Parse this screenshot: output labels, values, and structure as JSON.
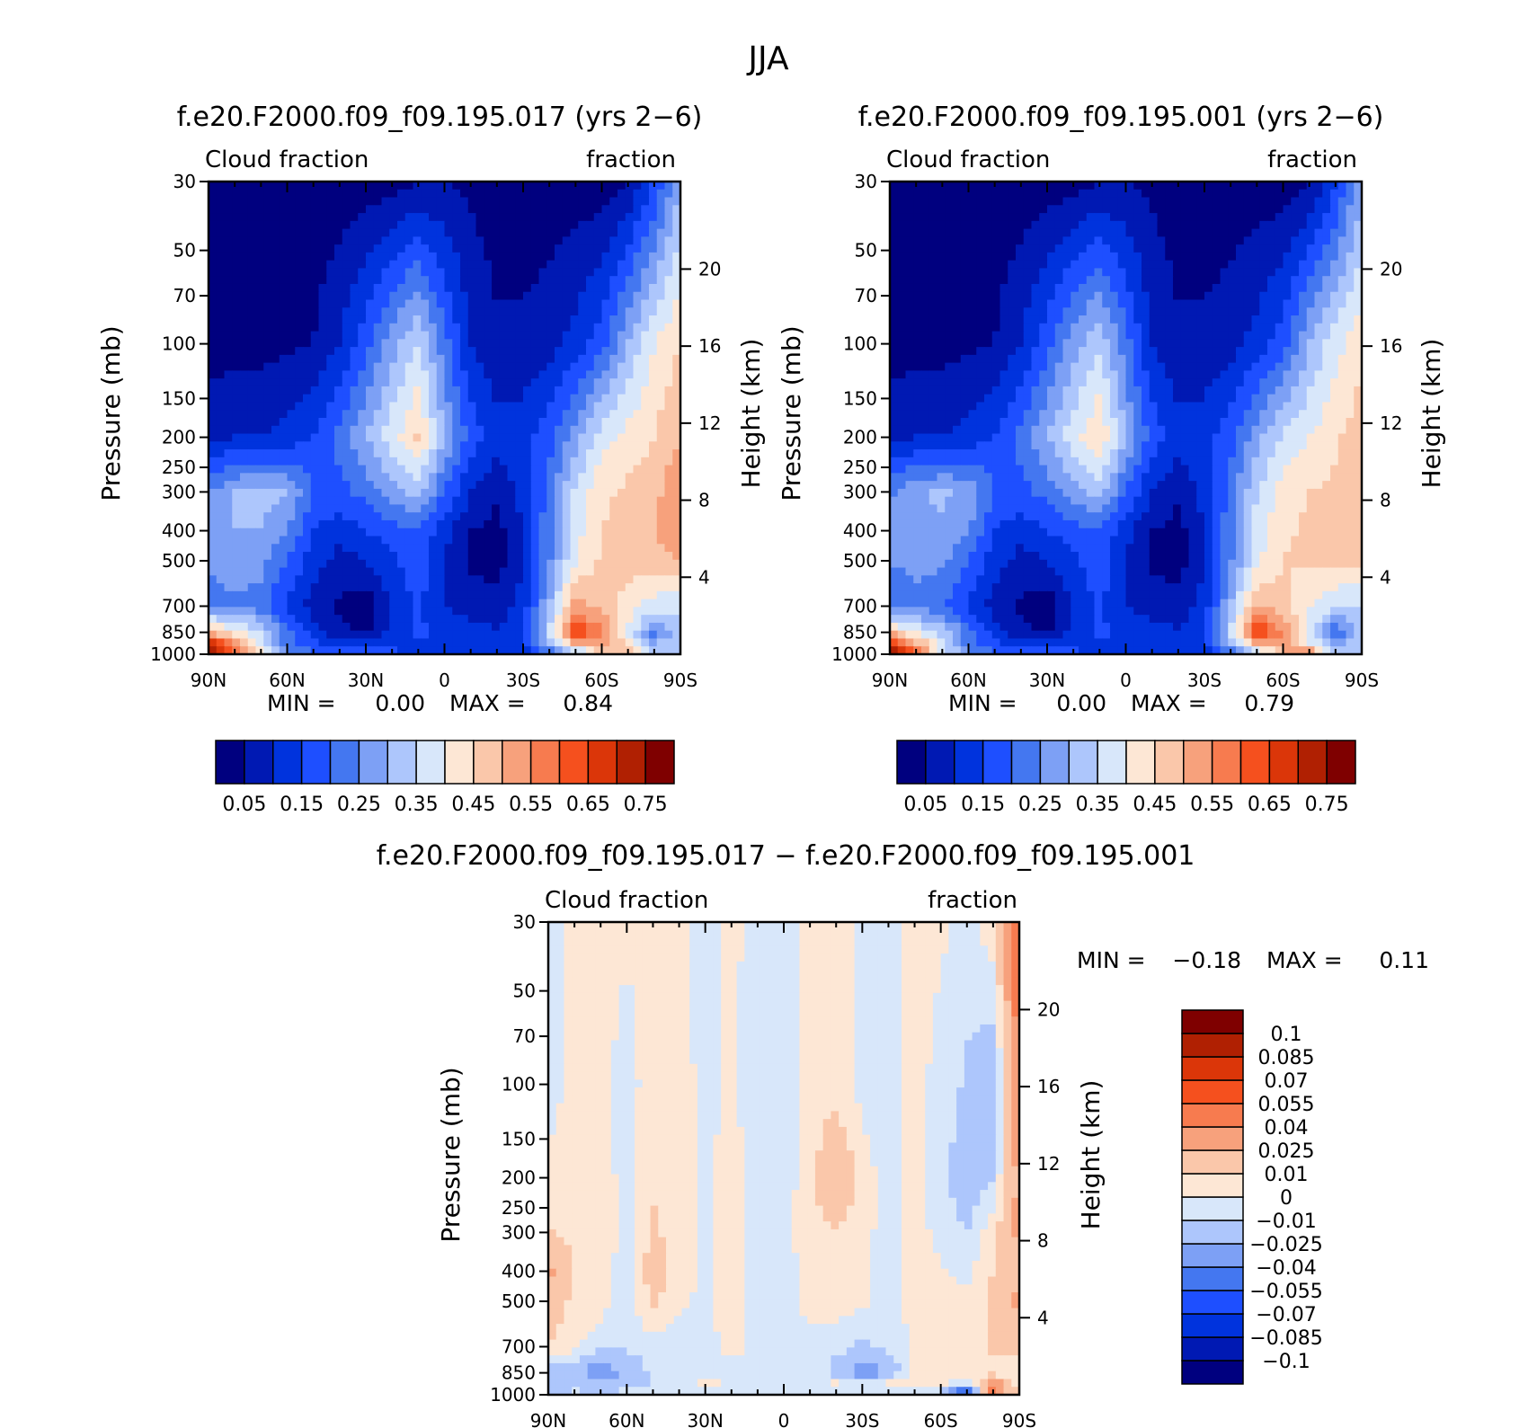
{
  "figure_title": "JJA",
  "chart_data": [
    {
      "type": "heatmap",
      "title": "f.e20.F2000.f09_f09.195.017 (yrs 2−6)",
      "left_label": "Cloud fraction",
      "right_label": "fraction",
      "xlabel": "",
      "ylabel": "Pressure (mb)",
      "y2label": "Height (km)",
      "x_ticks": [
        "90N",
        "60N",
        "30N",
        "0",
        "30S",
        "60S",
        "90S"
      ],
      "y_ticks": [
        "30",
        "50",
        "70",
        "100",
        "150",
        "200",
        "250",
        "300",
        "400",
        "500",
        "700",
        "850",
        "1000"
      ],
      "y2_ticks": [
        "20",
        "16",
        "12",
        "8",
        "4"
      ],
      "xlim": [
        "90N",
        "90S"
      ],
      "ylim": [
        1000,
        30
      ],
      "y_scale": "log",
      "stats": {
        "min_label": "MIN =",
        "min": "0.00",
        "max_label": "MAX =",
        "max": "0.84"
      },
      "colorbar": {
        "orientation": "horizontal",
        "colors": [
          "#00007f",
          "#0019b3",
          "#0033dd",
          "#1e4fff",
          "#4477f0",
          "#7da0f5",
          "#adc6fc",
          "#d8e7fa",
          "#fde7d5",
          "#fac7aa",
          "#f7a17c",
          "#f77b4f",
          "#f5501e",
          "#db3609",
          "#b02002",
          "#7f0000"
        ],
        "labels": [
          "0.05",
          "0.15",
          "0.25",
          "0.35",
          "0.45",
          "0.55",
          "0.65",
          "0.75"
        ]
      },
      "field": {
        "lat": [
          90,
          80,
          70,
          60,
          50,
          40,
          30,
          20,
          10,
          0,
          -10,
          -20,
          -30,
          -40,
          -50,
          -60,
          -70,
          -80,
          -90
        ],
        "pressure": [
          30,
          100,
          200,
          300,
          400,
          500,
          700,
          850,
          925,
          1000
        ],
        "values": [
          [
            0.02,
            0.02,
            0.02,
            0.02,
            0.02,
            0.02,
            0.02,
            0.03,
            0.05,
            0.05,
            0.04,
            0.02,
            0.02,
            0.02,
            0.02,
            0.02,
            0.05,
            0.15,
            0.3
          ],
          [
            0.03,
            0.03,
            0.03,
            0.04,
            0.05,
            0.1,
            0.18,
            0.28,
            0.35,
            0.22,
            0.1,
            0.06,
            0.06,
            0.08,
            0.12,
            0.18,
            0.3,
            0.4,
            0.45
          ],
          [
            0.08,
            0.1,
            0.1,
            0.12,
            0.15,
            0.22,
            0.3,
            0.38,
            0.46,
            0.3,
            0.18,
            0.12,
            0.13,
            0.18,
            0.28,
            0.38,
            0.42,
            0.45,
            0.5
          ],
          [
            0.25,
            0.3,
            0.32,
            0.3,
            0.2,
            0.18,
            0.22,
            0.28,
            0.32,
            0.2,
            0.1,
            0.06,
            0.12,
            0.22,
            0.36,
            0.44,
            0.46,
            0.48,
            0.55
          ],
          [
            0.28,
            0.3,
            0.3,
            0.25,
            0.15,
            0.12,
            0.15,
            0.18,
            0.2,
            0.12,
            0.05,
            0.03,
            0.1,
            0.24,
            0.38,
            0.45,
            0.47,
            0.5,
            0.55
          ],
          [
            0.26,
            0.28,
            0.27,
            0.2,
            0.12,
            0.08,
            0.1,
            0.14,
            0.18,
            0.1,
            0.04,
            0.02,
            0.1,
            0.24,
            0.4,
            0.46,
            0.48,
            0.48,
            0.5
          ],
          [
            0.22,
            0.24,
            0.22,
            0.14,
            0.08,
            0.04,
            0.02,
            0.1,
            0.16,
            0.1,
            0.08,
            0.08,
            0.12,
            0.3,
            0.52,
            0.48,
            0.42,
            0.38,
            0.35
          ],
          [
            0.5,
            0.42,
            0.36,
            0.22,
            0.12,
            0.06,
            0.04,
            0.12,
            0.16,
            0.14,
            0.12,
            0.1,
            0.14,
            0.36,
            0.66,
            0.56,
            0.4,
            0.22,
            0.35
          ],
          [
            0.72,
            0.55,
            0.38,
            0.22,
            0.16,
            0.12,
            0.12,
            0.14,
            0.14,
            0.14,
            0.12,
            0.12,
            0.14,
            0.3,
            0.5,
            0.55,
            0.42,
            0.3,
            0.35
          ],
          [
            0.8,
            0.64,
            0.4,
            0.28,
            0.22,
            0.18,
            0.18,
            0.16,
            0.14,
            0.12,
            0.12,
            0.12,
            0.12,
            0.18,
            0.28,
            0.45,
            0.52,
            0.35,
            0.35
          ]
        ]
      }
    },
    {
      "type": "heatmap",
      "title": "f.e20.F2000.f09_f09.195.001 (yrs 2−6)",
      "left_label": "Cloud fraction",
      "right_label": "fraction",
      "xlabel": "",
      "ylabel": "Pressure (mb)",
      "y2label": "Height (km)",
      "x_ticks": [
        "90N",
        "60N",
        "30N",
        "0",
        "30S",
        "60S",
        "90S"
      ],
      "y_ticks": [
        "30",
        "50",
        "70",
        "100",
        "150",
        "200",
        "250",
        "300",
        "400",
        "500",
        "700",
        "850",
        "1000"
      ],
      "y2_ticks": [
        "20",
        "16",
        "12",
        "8",
        "4"
      ],
      "xlim": [
        "90N",
        "90S"
      ],
      "ylim": [
        1000,
        30
      ],
      "y_scale": "log",
      "stats": {
        "min_label": "MIN =",
        "min": "0.00",
        "max_label": "MAX =",
        "max": "0.79"
      },
      "colorbar": {
        "orientation": "horizontal",
        "colors": [
          "#00007f",
          "#0019b3",
          "#0033dd",
          "#1e4fff",
          "#4477f0",
          "#7da0f5",
          "#adc6fc",
          "#d8e7fa",
          "#fde7d5",
          "#fac7aa",
          "#f7a17c",
          "#f77b4f",
          "#f5501e",
          "#db3609",
          "#b02002",
          "#7f0000"
        ],
        "labels": [
          "0.05",
          "0.15",
          "0.25",
          "0.35",
          "0.45",
          "0.55",
          "0.65",
          "0.75"
        ]
      },
      "field": {
        "lat": [
          90,
          80,
          70,
          60,
          50,
          40,
          30,
          20,
          10,
          0,
          -10,
          -20,
          -30,
          -40,
          -50,
          -60,
          -70,
          -80,
          -90
        ],
        "pressure": [
          30,
          100,
          200,
          300,
          400,
          500,
          700,
          850,
          925,
          1000
        ],
        "values": [
          [
            0.02,
            0.02,
            0.02,
            0.02,
            0.02,
            0.02,
            0.02,
            0.03,
            0.05,
            0.05,
            0.04,
            0.02,
            0.02,
            0.02,
            0.02,
            0.02,
            0.04,
            0.14,
            0.28
          ],
          [
            0.03,
            0.03,
            0.03,
            0.04,
            0.05,
            0.1,
            0.18,
            0.28,
            0.34,
            0.22,
            0.1,
            0.06,
            0.06,
            0.08,
            0.12,
            0.18,
            0.3,
            0.38,
            0.44
          ],
          [
            0.08,
            0.1,
            0.1,
            0.12,
            0.15,
            0.22,
            0.3,
            0.38,
            0.45,
            0.3,
            0.18,
            0.12,
            0.13,
            0.18,
            0.28,
            0.36,
            0.4,
            0.44,
            0.48
          ],
          [
            0.24,
            0.29,
            0.31,
            0.29,
            0.2,
            0.18,
            0.22,
            0.28,
            0.32,
            0.2,
            0.1,
            0.06,
            0.12,
            0.22,
            0.35,
            0.42,
            0.45,
            0.46,
            0.5
          ],
          [
            0.27,
            0.29,
            0.29,
            0.25,
            0.15,
            0.12,
            0.15,
            0.18,
            0.2,
            0.12,
            0.05,
            0.03,
            0.1,
            0.24,
            0.37,
            0.44,
            0.46,
            0.47,
            0.48
          ],
          [
            0.25,
            0.27,
            0.26,
            0.2,
            0.12,
            0.08,
            0.1,
            0.14,
            0.18,
            0.1,
            0.04,
            0.02,
            0.1,
            0.24,
            0.39,
            0.45,
            0.46,
            0.46,
            0.46
          ],
          [
            0.21,
            0.23,
            0.21,
            0.14,
            0.08,
            0.04,
            0.02,
            0.1,
            0.16,
            0.1,
            0.08,
            0.08,
            0.12,
            0.3,
            0.5,
            0.46,
            0.4,
            0.36,
            0.34
          ],
          [
            0.48,
            0.4,
            0.34,
            0.22,
            0.12,
            0.06,
            0.04,
            0.12,
            0.16,
            0.14,
            0.12,
            0.1,
            0.14,
            0.36,
            0.66,
            0.55,
            0.38,
            0.2,
            0.34
          ],
          [
            0.68,
            0.52,
            0.36,
            0.22,
            0.16,
            0.12,
            0.12,
            0.14,
            0.14,
            0.14,
            0.12,
            0.12,
            0.14,
            0.3,
            0.5,
            0.54,
            0.4,
            0.28,
            0.34
          ],
          [
            0.76,
            0.6,
            0.38,
            0.26,
            0.22,
            0.18,
            0.18,
            0.16,
            0.14,
            0.12,
            0.12,
            0.12,
            0.12,
            0.18,
            0.28,
            0.5,
            0.58,
            0.36,
            0.34
          ]
        ]
      }
    },
    {
      "type": "heatmap",
      "title": "f.e20.F2000.f09_f09.195.017 − f.e20.F2000.f09_f09.195.001",
      "left_label": "Cloud fraction",
      "right_label": "fraction",
      "xlabel": "",
      "ylabel": "Pressure (mb)",
      "y2label": "Height (km)",
      "x_ticks": [
        "90N",
        "60N",
        "30N",
        "0",
        "30S",
        "60S",
        "90S"
      ],
      "y_ticks": [
        "30",
        "50",
        "70",
        "100",
        "150",
        "200",
        "250",
        "300",
        "400",
        "500",
        "700",
        "850",
        "1000"
      ],
      "y2_ticks": [
        "20",
        "16",
        "12",
        "8",
        "4"
      ],
      "xlim": [
        "90N",
        "90S"
      ],
      "ylim": [
        1000,
        30
      ],
      "y_scale": "log",
      "stats": {
        "min_label": "MIN =",
        "min": "−0.18",
        "max_label": "MAX =",
        "max": "0.11"
      },
      "colorbar": {
        "orientation": "vertical",
        "colors": [
          "#00007f",
          "#0019b3",
          "#0033dd",
          "#1e4fff",
          "#4477f0",
          "#7da0f5",
          "#adc6fc",
          "#d8e7fa",
          "#fde7d5",
          "#fac7aa",
          "#f7a17c",
          "#f77b4f",
          "#f5501e",
          "#db3609",
          "#b02002",
          "#7f0000"
        ],
        "labels": [
          "−0.1",
          "−0.085",
          "−0.07",
          "−0.055",
          "−0.04",
          "−0.025",
          "−0.01",
          "0",
          "0.01",
          "0.025",
          "0.04",
          "0.055",
          "0.07",
          "0.085",
          "0.1"
        ]
      },
      "field": {
        "lat": [
          90,
          80,
          70,
          60,
          50,
          40,
          30,
          20,
          10,
          0,
          -10,
          -20,
          -30,
          -40,
          -50,
          -60,
          -70,
          -80,
          -90
        ],
        "pressure": [
          30,
          100,
          200,
          300,
          400,
          500,
          700,
          850,
          925,
          1000
        ],
        "values": [
          [
            -0.005,
            0.004,
            0.003,
            0.002,
            0.004,
            0.003,
            -0.004,
            0.002,
            -0.003,
            -0.005,
            0.002,
            0.004,
            -0.003,
            -0.004,
            0.003,
            0.002,
            -0.004,
            0.006,
            0.06
          ],
          [
            -0.006,
            0.005,
            0.004,
            -0.005,
            0.006,
            0.004,
            -0.003,
            0.002,
            -0.006,
            -0.008,
            0.005,
            0.006,
            -0.004,
            -0.006,
            0.004,
            -0.004,
            -0.012,
            -0.02,
            0.04
          ],
          [
            0.004,
            0.006,
            0.005,
            -0.004,
            0.008,
            0.006,
            -0.002,
            0.004,
            -0.005,
            -0.006,
            0.007,
            0.022,
            0.006,
            -0.006,
            0.005,
            -0.006,
            -0.018,
            -0.01,
            0.03
          ],
          [
            0.01,
            0.008,
            0.006,
            -0.004,
            0.012,
            0.004,
            -0.002,
            0.004,
            -0.004,
            -0.004,
            0.006,
            0.01,
            0.004,
            -0.005,
            0.006,
            -0.005,
            -0.01,
            0.008,
            0.03
          ],
          [
            0.03,
            0.008,
            0.006,
            -0.006,
            0.018,
            0.004,
            -0.002,
            0.004,
            -0.004,
            -0.006,
            0.006,
            0.008,
            0.002,
            -0.004,
            0.006,
            0.002,
            -0.004,
            0.01,
            0.02
          ],
          [
            0.02,
            0.006,
            0.004,
            -0.006,
            0.012,
            0.002,
            -0.002,
            0.004,
            -0.004,
            -0.006,
            0.004,
            0.006,
            0.002,
            -0.004,
            0.004,
            0.004,
            0.004,
            0.012,
            0.03
          ],
          [
            0.01,
            0.002,
            -0.006,
            -0.008,
            -0.004,
            -0.006,
            -0.004,
            0.004,
            -0.004,
            -0.004,
            -0.004,
            -0.006,
            -0.012,
            -0.008,
            0.002,
            0.004,
            0.006,
            0.012,
            0.015
          ],
          [
            -0.02,
            -0.015,
            -0.04,
            -0.02,
            -0.008,
            -0.006,
            -0.004,
            -0.004,
            -0.004,
            -0.004,
            -0.004,
            -0.015,
            -0.04,
            -0.02,
            0.004,
            0.006,
            0.004,
            0.004,
            0.004
          ],
          [
            -0.015,
            -0.012,
            -0.02,
            -0.015,
            -0.01,
            -0.006,
            0.006,
            -0.004,
            -0.004,
            -0.004,
            -0.004,
            0.004,
            -0.004,
            0.004,
            0.002,
            0.004,
            -0.008,
            0.04,
            0.004
          ],
          [
            -0.01,
            -0.008,
            -0.008,
            -0.006,
            -0.004,
            -0.004,
            -0.004,
            -0.004,
            -0.004,
            -0.004,
            -0.004,
            -0.004,
            -0.004,
            -0.004,
            -0.004,
            -0.02,
            -0.08,
            0.05,
            0.004
          ]
        ]
      }
    }
  ]
}
